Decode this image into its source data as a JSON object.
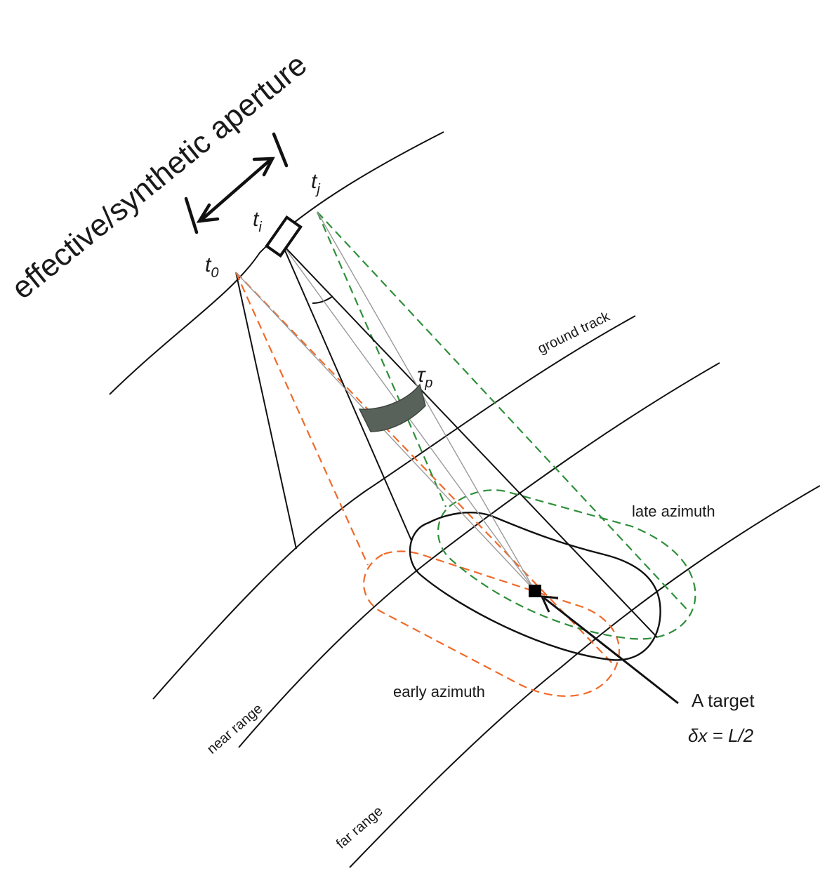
{
  "labels": {
    "aperture": "effective/synthetic aperture",
    "t0": "t",
    "t0_sub": "0",
    "ti": "t",
    "ti_sub": "i",
    "tj": "t",
    "tj_sub": "j",
    "tau": "τ",
    "tau_sub": "p",
    "ground_track": "ground track",
    "late_azimuth": "late azimuth",
    "early_azimuth": "early azimuth",
    "near_range": "near range",
    "far_range": "far range",
    "target_title": "A target",
    "target_formula": "δx = L/2"
  },
  "colors": {
    "early": "#f06a2a",
    "late": "#2f8f3a",
    "pulse": "#59625a",
    "line": "#111111"
  }
}
